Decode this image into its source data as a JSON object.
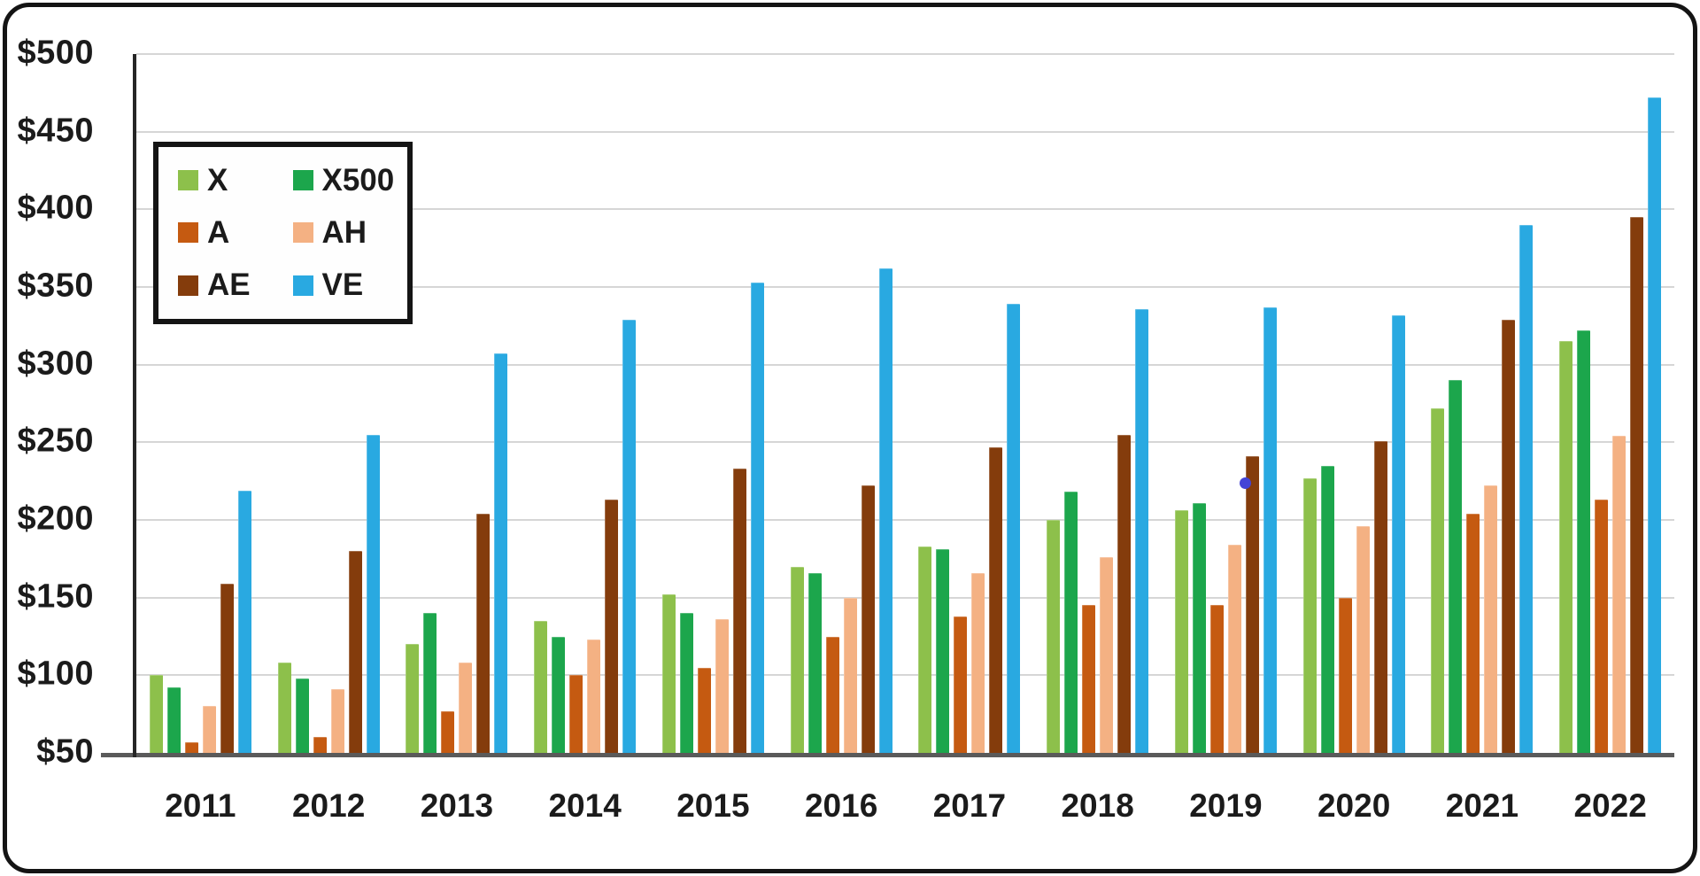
{
  "chart_data": {
    "type": "bar",
    "title": "",
    "xlabel": "",
    "ylabel": "",
    "categories": [
      "2011",
      "2012",
      "2013",
      "2014",
      "2015",
      "2016",
      "2017",
      "2018",
      "2019",
      "2020",
      "2021",
      "2022"
    ],
    "series": [
      {
        "name": "X",
        "color": "#8DC04B",
        "values": [
          100,
          108,
          120,
          135,
          152,
          170,
          183,
          200,
          206,
          227,
          272,
          315
        ]
      },
      {
        "name": "X500",
        "color": "#1CA64C",
        "values": [
          92,
          98,
          140,
          125,
          140,
          166,
          181,
          218,
          211,
          235,
          290,
          322
        ]
      },
      {
        "name": "A",
        "color": "#C55A11",
        "values": [
          57,
          60,
          77,
          100,
          105,
          125,
          138,
          145,
          145,
          150,
          204,
          213
        ]
      },
      {
        "name": "AH",
        "color": "#F4B183",
        "values": [
          80,
          91,
          108,
          123,
          136,
          150,
          166,
          176,
          184,
          196,
          222,
          254
        ]
      },
      {
        "name": "AE",
        "color": "#843C0C",
        "values": [
          159,
          180,
          204,
          213,
          233,
          222,
          247,
          255,
          241,
          251,
          329,
          395
        ]
      },
      {
        "name": "VE",
        "color": "#29A9E1",
        "values": [
          219,
          255,
          307,
          329,
          353,
          362,
          339,
          336,
          337,
          332,
          390,
          472
        ]
      }
    ],
    "ylim": [
      50,
      500
    ],
    "y_ticks": [
      "$500",
      "$450",
      "$400",
      "$350",
      "$300",
      "$250",
      "$200",
      "$150",
      "$100",
      "$50"
    ],
    "grid": "horizontal",
    "legend_position": "top-left",
    "legend_columns": 2,
    "annotations": [
      {
        "type": "dot",
        "color": "#4444D6",
        "category": "2019",
        "series": "AE",
        "value": 224
      }
    ]
  }
}
